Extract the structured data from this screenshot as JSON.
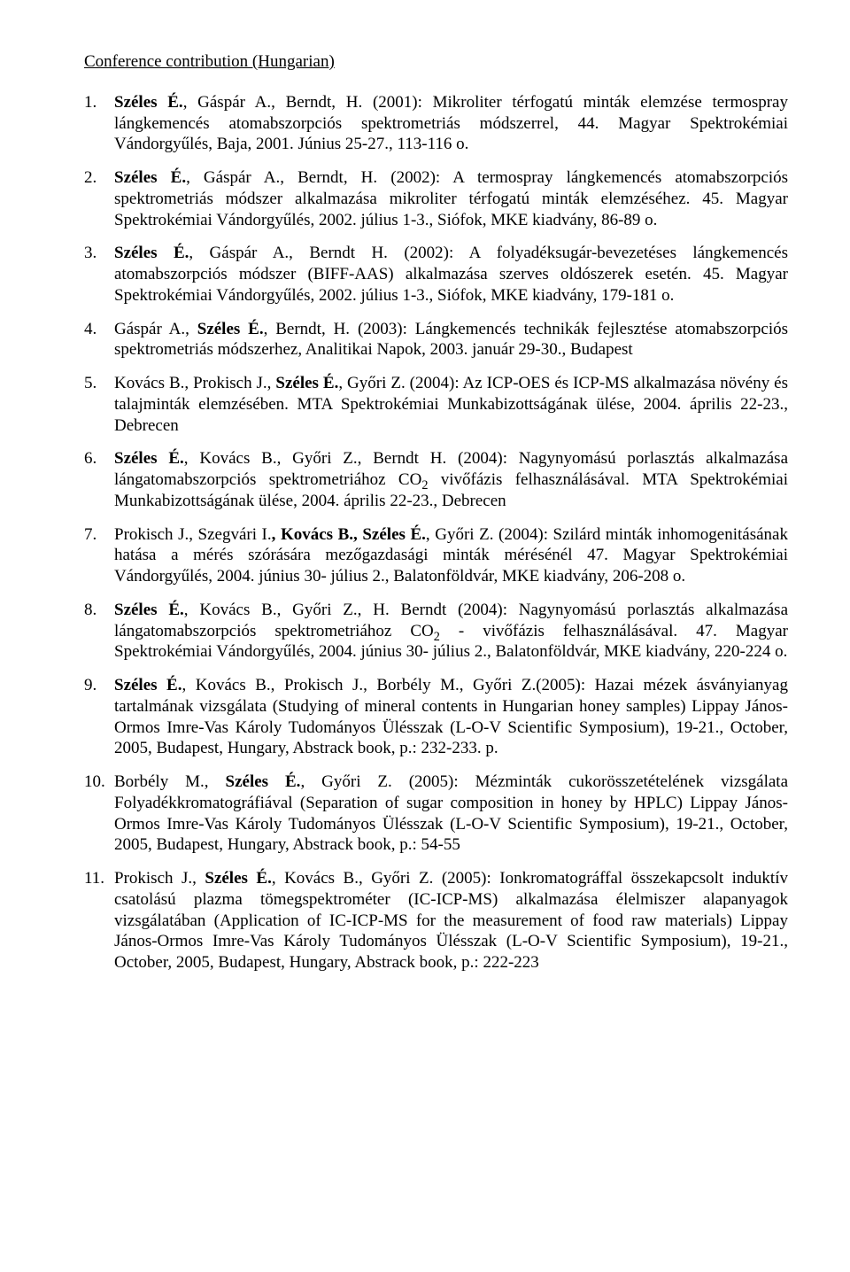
{
  "heading": "Conference contribution (Hungarian)",
  "refs": [
    {
      "spans": [
        {
          "t": "Széles É.",
          "b": true
        },
        {
          "t": ", Gáspár A., Berndt, H. (2001): Mikroliter térfogatú minták elemzése termospray lángkemencés atomabszorpciós spektrometriás módszerrel, 44. Magyar Spektrokémiai Vándorgyűlés, Baja, 2001. Június 25-27., 113-116 o."
        }
      ]
    },
    {
      "spans": [
        {
          "t": "Széles É.",
          "b": true
        },
        {
          "t": ", Gáspár A., Berndt, H. (2002): A termospray lángkemencés atomabszorpciós spektrometriás módszer alkalmazása mikroliter térfogatú minták elemzéséhez. 45. Magyar Spektrokémiai Vándorgyűlés, 2002. július 1-3., Siófok, MKE kiadvány, 86-89 o."
        }
      ]
    },
    {
      "spans": [
        {
          "t": "Széles É.",
          "b": true
        },
        {
          "t": ", Gáspár A., Berndt H. (2002): A folyadéksugár-bevezetéses lángkemencés atomabszorpciós módszer (BIFF-AAS) alkalmazása szerves oldószerek esetén. 45. Magyar Spektrokémiai Vándorgyűlés, 2002. július 1-3., Siófok, MKE kiadvány, 179-181 o."
        }
      ]
    },
    {
      "spans": [
        {
          "t": "Gáspár A., "
        },
        {
          "t": "Széles É.",
          "b": true
        },
        {
          "t": ", Berndt, H. (2003): Lángkemencés technikák fejlesztése atomabszorpciós spektrometriás módszerhez, Analitikai Napok, 2003. január 29-30., Budapest"
        }
      ]
    },
    {
      "spans": [
        {
          "t": "Kovács B., Prokisch J., "
        },
        {
          "t": "Széles É.",
          "b": true
        },
        {
          "t": ", Győri Z. (2004): Az ICP-OES és ICP-MS alkalmazása növény és talajminták elemzésében. MTA Spektrokémiai Munkabizottságának ülése, 2004. április 22-23., Debrecen"
        }
      ]
    },
    {
      "spans": [
        {
          "t": "Széles É.",
          "b": true
        },
        {
          "t": ", Kovács B., Győri Z., Berndt H. (2004): Nagynyomású porlasztás alkalmazása lángatomabszorpciós spektrometriához CO"
        },
        {
          "t": "2",
          "sub": true
        },
        {
          "t": " vivőfázis felhasználásával. MTA Spektrokémiai Munkabizottságának ülése, 2004. április 22-23., Debrecen"
        }
      ]
    },
    {
      "spans": [
        {
          "t": "Prokisch J., Szegvári I."
        },
        {
          "t": ", Kovács B., Széles É.",
          "b": true
        },
        {
          "t": ", Győri Z. (2004): Szilárd minták inhomogenitásának hatása a mérés szórására mezőgazdasági minták mérésénél 47. Magyar Spektrokémiai Vándorgyűlés, 2004. június 30- július 2., Balatonföldvár, MKE kiadvány, 206-208 o."
        }
      ]
    },
    {
      "spans": [
        {
          "t": "Széles É.",
          "b": true
        },
        {
          "t": ", Kovács B., Győri Z., H. Berndt (2004): Nagynyomású porlasztás alkalmazása lángatomabszorpciós spektrometriához CO"
        },
        {
          "t": "2",
          "sub": true
        },
        {
          "t": " - vivőfázis felhasználásával. 47. Magyar Spektrokémiai Vándorgyűlés, 2004. június 30- július 2., Balatonföldvár, MKE kiadvány, 220-224 o."
        }
      ]
    },
    {
      "spans": [
        {
          "t": "Széles É.",
          "b": true
        },
        {
          "t": ", Kovács B., Prokisch J., Borbély M., Győri Z.(2005): Hazai mézek ásványianyag tartalmának vizsgálata (Studying of mineral contents in Hungarian honey samples) Lippay János-Ormos Imre-Vas Károly Tudományos Ülésszak (L-O-V Scientific Symposium), 19-21., October, 2005, Budapest, Hungary, Abstrack book, p.: 232-233. p."
        }
      ]
    },
    {
      "spans": [
        {
          "t": "Borbély M., "
        },
        {
          "t": "Széles É.",
          "b": true
        },
        {
          "t": ", Győri Z. (2005): Mézminták cukorösszetételének vizsgálata Folyadékkromatográfiával (Separation of sugar composition in honey by HPLC) Lippay János-Ormos Imre-Vas Károly Tudományos Ülésszak (L-O-V Scientific Symposium), 19-21., October, 2005, Budapest, Hungary, Abstrack book, p.: 54-55"
        }
      ]
    },
    {
      "spans": [
        {
          "t": "Prokisch J., "
        },
        {
          "t": "Széles É.",
          "b": true
        },
        {
          "t": ", Kovács B., Győri Z. (2005): Ionkromatográffal összekapcsolt induktív csatolású plazma tömegspektrométer (IC-ICP-MS) alkalmazása élelmiszer alapanyagok vizsgálatában (Application of IC-ICP-MS for the measurement of food raw materials) Lippay János-Ormos Imre-Vas Károly Tudományos Ülésszak (L-O-V Scientific Symposium), 19-21., October, 2005, Budapest, Hungary, Abstrack book, p.: 222-223"
        }
      ]
    }
  ]
}
